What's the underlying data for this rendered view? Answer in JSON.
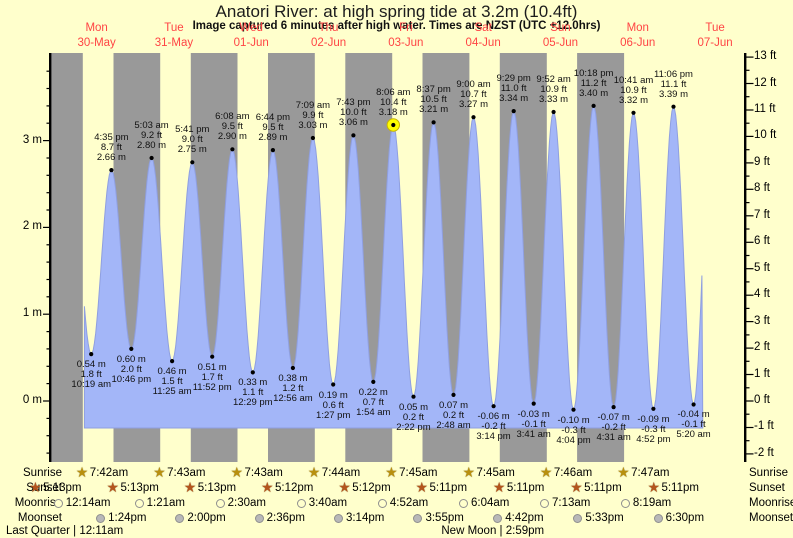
{
  "chart_data": {
    "type": "area",
    "title": "Anatori River: at high  spring tide at 3.2m (10.4ft)",
    "subtitle": "Image captured 6 minutes after high water. Times are NZST (UTC +12.0hrs)",
    "x_axis_days": [
      {
        "name": "Mon",
        "date": "30-May"
      },
      {
        "name": "Tue",
        "date": "31-May"
      },
      {
        "name": "Wed",
        "date": "01-Jun"
      },
      {
        "name": "Thu",
        "date": "02-Jun"
      },
      {
        "name": "Fri",
        "date": "03-Jun"
      },
      {
        "name": "Sat",
        "date": "04-Jun"
      },
      {
        "name": "Sun",
        "date": "05-Jun"
      },
      {
        "name": "Mon",
        "date": "06-Jun"
      },
      {
        "name": "Tue",
        "date": "07-Jun"
      }
    ],
    "y_axis_left": {
      "unit": "m",
      "ticks": [
        {
          "value": 3,
          "label": "3 m"
        },
        {
          "value": 2,
          "label": "2 m"
        },
        {
          "value": 1,
          "label": "1 m"
        },
        {
          "value": 0,
          "label": "0 m"
        }
      ]
    },
    "y_axis_right": {
      "unit": "ft",
      "ticks": [
        {
          "value": 13,
          "label": "13 ft"
        },
        {
          "value": 12,
          "label": "12 ft"
        },
        {
          "value": 11,
          "label": "11 ft"
        },
        {
          "value": 10,
          "label": "10 ft"
        },
        {
          "value": 9,
          "label": "9 ft"
        },
        {
          "value": 8,
          "label": "8 ft"
        },
        {
          "value": 7,
          "label": "7 ft"
        },
        {
          "value": 6,
          "label": "6 ft"
        },
        {
          "value": 5,
          "label": "5 ft"
        },
        {
          "value": 4,
          "label": "4 ft"
        },
        {
          "value": 3,
          "label": "3 ft"
        },
        {
          "value": 2,
          "label": "2 ft"
        },
        {
          "value": 1,
          "label": "1 ft"
        },
        {
          "value": 0,
          "label": "0 ft"
        },
        {
          "value": -1,
          "label": "-1 ft"
        },
        {
          "value": -2,
          "label": "-2 ft"
        }
      ]
    },
    "ylim_m": [
      -0.7,
      4.0
    ],
    "tide_extremes": [
      {
        "type": "low",
        "day": 0,
        "time": "10:19 am",
        "m": "0.54 m",
        "ft": "1.8 ft"
      },
      {
        "type": "high",
        "day": 0,
        "time": "4:35 pm",
        "m": "2.66 m",
        "ft": "8.7 ft"
      },
      {
        "type": "low",
        "day": 0,
        "time": "10:46 pm",
        "m": "0.60 m",
        "ft": "2.0 ft"
      },
      {
        "type": "high",
        "day": 1,
        "time": "5:03 am",
        "m": "2.80 m",
        "ft": "9.2 ft"
      },
      {
        "type": "low",
        "day": 1,
        "time": "11:25 am",
        "m": "0.46 m",
        "ft": "1.5 ft"
      },
      {
        "type": "high",
        "day": 1,
        "time": "5:41 pm",
        "m": "2.75 m",
        "ft": "9.0 ft"
      },
      {
        "type": "low",
        "day": 1,
        "time": "11:52 pm",
        "m": "0.51 m",
        "ft": "1.7 ft"
      },
      {
        "type": "high",
        "day": 2,
        "time": "6:08 am",
        "m": "2.90 m",
        "ft": "9.5 ft"
      },
      {
        "type": "low",
        "day": 2,
        "time": "12:29 pm",
        "m": "0.33 m",
        "ft": "1.1 ft"
      },
      {
        "type": "high",
        "day": 2,
        "time": "6:44 pm",
        "m": "2.89 m",
        "ft": "9.5 ft"
      },
      {
        "type": "low",
        "day": 3,
        "time": "12:56 am",
        "m": "0.38 m",
        "ft": "1.2 ft"
      },
      {
        "type": "high",
        "day": 3,
        "time": "7:09 am",
        "m": "3.03 m",
        "ft": "9.9 ft"
      },
      {
        "type": "low",
        "day": 3,
        "time": "1:27 pm",
        "m": "0.19 m",
        "ft": "0.6 ft"
      },
      {
        "type": "high",
        "day": 3,
        "time": "7:43 pm",
        "m": "3.06 m",
        "ft": "10.0 ft"
      },
      {
        "type": "low",
        "day": 4,
        "time": "1:54 am",
        "m": "0.22 m",
        "ft": "0.7 ft"
      },
      {
        "type": "high",
        "day": 4,
        "time": "8:06 am",
        "m": "3.18 m",
        "ft": "10.4 ft",
        "current": true
      },
      {
        "type": "low",
        "day": 4,
        "time": "2:22 pm",
        "m": "0.05 m",
        "ft": "0.2 ft"
      },
      {
        "type": "high",
        "day": 4,
        "time": "8:37 pm",
        "m": "3.21 m",
        "ft": "10.5 ft"
      },
      {
        "type": "low",
        "day": 5,
        "time": "2:48 am",
        "m": "0.07 m",
        "ft": "0.2 ft"
      },
      {
        "type": "high",
        "day": 5,
        "time": "9:00 am",
        "m": "3.27 m",
        "ft": "10.7 ft"
      },
      {
        "type": "low",
        "day": 5,
        "time": "3:14 pm",
        "m": "-0.06 m",
        "ft": "-0.2 ft"
      },
      {
        "type": "high",
        "day": 5,
        "time": "9:29 pm",
        "m": "3.34 m",
        "ft": "11.0 ft"
      },
      {
        "type": "low",
        "day": 6,
        "time": "3:41 am",
        "m": "-0.03 m",
        "ft": "-0.1 ft"
      },
      {
        "type": "high",
        "day": 6,
        "time": "9:52 am",
        "m": "3.33 m",
        "ft": "10.9 ft"
      },
      {
        "type": "low",
        "day": 6,
        "time": "4:04 pm",
        "m": "-0.10 m",
        "ft": "-0.3 ft"
      },
      {
        "type": "high",
        "day": 6,
        "time": "10:18 pm",
        "m": "3.40 m",
        "ft": "11.2 ft"
      },
      {
        "type": "low",
        "day": 7,
        "time": "4:31 am",
        "m": "-0.07 m",
        "ft": "-0.2 ft"
      },
      {
        "type": "high",
        "day": 7,
        "time": "10:41 am",
        "m": "3.32 m",
        "ft": "10.9 ft"
      },
      {
        "type": "low",
        "day": 7,
        "time": "4:52 pm",
        "m": "-0.09 m",
        "ft": "-0.3 ft"
      },
      {
        "type": "high",
        "day": 7,
        "time": "11:06 pm",
        "m": "3.39 m",
        "ft": "11.1 ft"
      },
      {
        "type": "low",
        "day": 8,
        "time": "5:20 am",
        "m": "-0.04 m",
        "ft": "-0.1 ft"
      }
    ]
  },
  "almanac": {
    "phase_separator": "|",
    "rows": [
      {
        "label": "Sunrise",
        "icon": "sunrise-star-icon",
        "events": [
          {
            "day": 0,
            "time": "7:42am"
          },
          {
            "day": 1,
            "time": "7:43am"
          },
          {
            "day": 2,
            "time": "7:43am"
          },
          {
            "day": 3,
            "time": "7:44am"
          },
          {
            "day": 4,
            "time": "7:45am"
          },
          {
            "day": 5,
            "time": "7:45am"
          },
          {
            "day": 6,
            "time": "7:46am"
          },
          {
            "day": 7,
            "time": "7:47am"
          }
        ]
      },
      {
        "label": "Sunset",
        "icon": "sunset-star-icon",
        "events": [
          {
            "day": -1,
            "time": "5:13pm"
          },
          {
            "day": 0,
            "time": "5:13pm"
          },
          {
            "day": 1,
            "time": "5:13pm"
          },
          {
            "day": 2,
            "time": "5:12pm"
          },
          {
            "day": 3,
            "time": "5:12pm"
          },
          {
            "day": 4,
            "time": "5:11pm"
          },
          {
            "day": 5,
            "time": "5:11pm"
          },
          {
            "day": 6,
            "time": "5:11pm"
          },
          {
            "day": 7,
            "time": "5:11pm"
          }
        ]
      },
      {
        "label": "Moonrise",
        "icon": "moonrise-circle-icon",
        "events": [
          {
            "day": 0,
            "time": "12:14am"
          },
          {
            "day": 1,
            "time": "1:21am"
          },
          {
            "day": 2,
            "time": "2:30am"
          },
          {
            "day": 3,
            "time": "3:40am"
          },
          {
            "day": 4,
            "time": "4:52am"
          },
          {
            "day": 5,
            "time": "6:04am"
          },
          {
            "day": 6,
            "time": "7:13am"
          },
          {
            "day": 7,
            "time": "8:19am"
          }
        ]
      },
      {
        "label": "Moonset",
        "icon": "moonset-circle-icon",
        "events": [
          {
            "day": 0,
            "time": "1:24pm"
          },
          {
            "day": 1,
            "time": "2:00pm"
          },
          {
            "day": 2,
            "time": "2:36pm"
          },
          {
            "day": 3,
            "time": "3:14pm"
          },
          {
            "day": 4,
            "time": "3:55pm"
          },
          {
            "day": 5,
            "time": "4:42pm"
          },
          {
            "day": 6,
            "time": "5:33pm"
          },
          {
            "day": 7,
            "time": "6:30pm"
          }
        ]
      }
    ],
    "moon_phases": [
      {
        "label": "Last Quarter",
        "time": "12:11am",
        "day": 0,
        "align": "left"
      },
      {
        "label": "New Moon",
        "time": "2:59pm",
        "day": 5,
        "align": "center"
      }
    ]
  },
  "colors": {
    "background": "#ffffcc",
    "night_band": "#999999",
    "day_band": "#ffffcc",
    "tide_fill": "#a3b6f8",
    "tide_edge": "#8f9fe0",
    "date_label": "#ff4444",
    "sunrise_star": "#b8900f",
    "sunset_star": "#b4551d",
    "moonrise_fill": "#ffffcc",
    "moonset_fill": "#b8b8b8",
    "current_marker": "#ffff00",
    "axis": "#000000"
  }
}
